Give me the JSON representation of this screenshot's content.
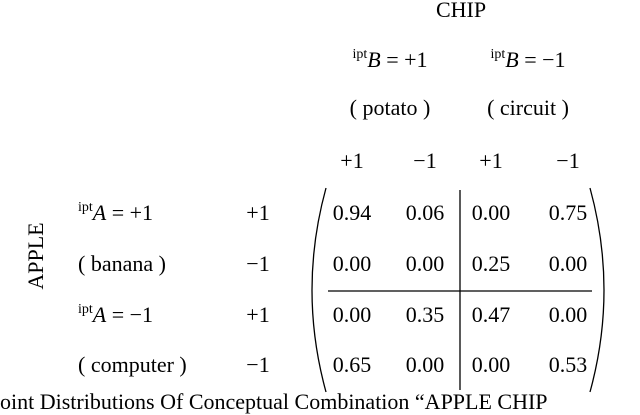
{
  "title": "CHIP",
  "column_headers": [
    {
      "sup": "ipt",
      "var": "B",
      "rest": " = +1",
      "gloss": "( potato )"
    },
    {
      "sup": "ipt",
      "var": "B",
      "rest": " = −1",
      "gloss": "( circuit )"
    }
  ],
  "column_signs": [
    "+1",
    "−1",
    "+1",
    "−1"
  ],
  "row_title": "APPLE",
  "row_headers": [
    {
      "sup": "ipt",
      "var": "A",
      "rest": " = +1",
      "gloss": "( banana )"
    },
    {
      "sup": "ipt",
      "var": "A",
      "rest": " = −1",
      "gloss": "( computer )"
    }
  ],
  "row_signs": [
    "+1",
    "−1",
    "+1",
    "−1"
  ],
  "matrix": [
    [
      "0.94",
      "0.06",
      "0.00",
      "0.75"
    ],
    [
      "0.00",
      "0.00",
      "0.25",
      "0.00"
    ],
    [
      "0.00",
      "0.35",
      "0.47",
      "0.00"
    ],
    [
      "0.65",
      "0.00",
      "0.00",
      "0.53"
    ]
  ],
  "caption": "oint Distributions Of Conceptual Combination “APPLE CHIP"
}
